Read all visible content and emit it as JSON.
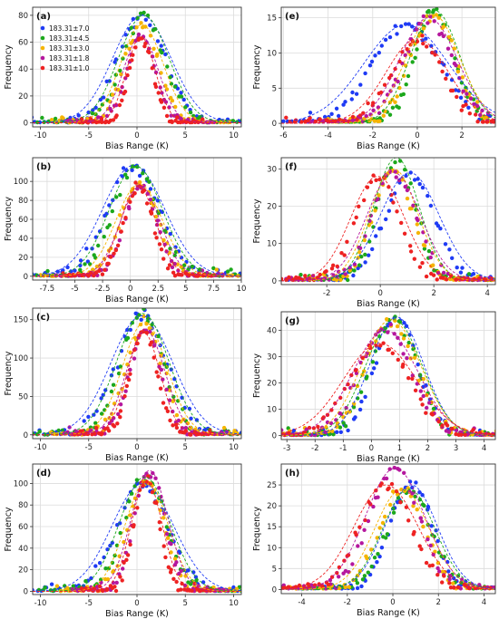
{
  "legend": [
    {
      "label": "183.31±7.0",
      "color": "#1f3bf5"
    },
    {
      "label": "183.31±4.5",
      "color": "#1ca81c"
    },
    {
      "label": "183.31±3.0",
      "color": "#f5b400"
    },
    {
      "label": "183.31±1.8",
      "color": "#b5179e"
    },
    {
      "label": "183.31±1.0",
      "color": "#ee2222"
    }
  ],
  "chart_data": [
    {
      "panel": "(a)",
      "type": "scatter",
      "xlabel": "Bias Range (K)",
      "ylabel": "Frequency",
      "xlim": [
        -10.8,
        10.8
      ],
      "ylim": [
        -3,
        86
      ],
      "xticks": [
        -10,
        -5,
        0,
        5,
        10
      ],
      "yticks": [
        0,
        20,
        40,
        60,
        80
      ],
      "legend_position": "top-left",
      "series": [
        {
          "name": "183.31±7.0",
          "mu": 0.5,
          "sigma": 3.0,
          "amp": 80
        },
        {
          "name": "183.31±4.5",
          "mu": 0.7,
          "sigma": 2.6,
          "amp": 80
        },
        {
          "name": "183.31±3.0",
          "mu": 0.5,
          "sigma": 2.2,
          "amp": 73
        },
        {
          "name": "183.31±1.8",
          "mu": 0.4,
          "sigma": 1.8,
          "amp": 65
        },
        {
          "name": "183.31±1.0",
          "mu": 0.4,
          "sigma": 1.5,
          "amp": 64
        }
      ]
    },
    {
      "panel": "(b)",
      "type": "scatter",
      "xlabel": "Bias Range (K)",
      "ylabel": "Frequency",
      "xlim": [
        -8.8,
        10.0
      ],
      "ylim": [
        -4,
        125
      ],
      "xticks": [
        -7.5,
        -5.0,
        -2.5,
        0.0,
        2.5,
        5.0,
        7.5,
        10.0
      ],
      "yticks": [
        0,
        20,
        40,
        60,
        80,
        100
      ],
      "series": [
        {
          "name": "183.31±7.0",
          "mu": 0.3,
          "sigma": 2.8,
          "amp": 117
        },
        {
          "name": "183.31±4.5",
          "mu": 0.5,
          "sigma": 2.4,
          "amp": 116
        },
        {
          "name": "183.31±3.0",
          "mu": 0.8,
          "sigma": 2.1,
          "amp": 97
        },
        {
          "name": "183.31±1.8",
          "mu": 0.9,
          "sigma": 1.8,
          "amp": 95
        },
        {
          "name": "183.31±1.0",
          "mu": 0.7,
          "sigma": 1.6,
          "amp": 95
        }
      ]
    },
    {
      "panel": "(c)",
      "type": "scatter",
      "xlabel": "Bias Range (K)",
      "ylabel": "Frequency",
      "xlim": [
        -10.8,
        10.8
      ],
      "ylim": [
        -5,
        165
      ],
      "xticks": [
        -10,
        -5,
        0,
        5,
        10
      ],
      "yticks": [
        0,
        50,
        100,
        150
      ],
      "series": [
        {
          "name": "183.31±7.0",
          "mu": 0.5,
          "sigma": 3.2,
          "amp": 155
        },
        {
          "name": "183.31±4.5",
          "mu": 0.6,
          "sigma": 2.7,
          "amp": 158
        },
        {
          "name": "183.31±3.0",
          "mu": 0.8,
          "sigma": 2.3,
          "amp": 147
        },
        {
          "name": "183.31±1.8",
          "mu": 0.9,
          "sigma": 2.0,
          "amp": 136
        },
        {
          "name": "183.31±1.0",
          "mu": 0.7,
          "sigma": 1.7,
          "amp": 133
        }
      ]
    },
    {
      "panel": "(d)",
      "type": "scatter",
      "xlabel": "Bias Range (K)",
      "ylabel": "Frequency",
      "xlim": [
        -10.8,
        10.8
      ],
      "ylim": [
        -3,
        118
      ],
      "xticks": [
        -10,
        -5,
        0,
        5,
        10
      ],
      "yticks": [
        0,
        20,
        40,
        60,
        80,
        100
      ],
      "series": [
        {
          "name": "183.31±7.0",
          "mu": 0.6,
          "sigma": 3.2,
          "amp": 100
        },
        {
          "name": "183.31±4.5",
          "mu": 0.8,
          "sigma": 2.6,
          "amp": 106
        },
        {
          "name": "183.31±3.0",
          "mu": 1.0,
          "sigma": 2.2,
          "amp": 103
        },
        {
          "name": "183.31±1.8",
          "mu": 1.3,
          "sigma": 1.9,
          "amp": 112
        },
        {
          "name": "183.31±1.0",
          "mu": 1.0,
          "sigma": 1.6,
          "amp": 103
        }
      ]
    },
    {
      "panel": "(e)",
      "type": "scatter",
      "xlabel": "Bias Range (K)",
      "ylabel": "Frequency",
      "xlim": [
        -6.1,
        3.5
      ],
      "ylim": [
        -0.5,
        16.5
      ],
      "xticks": [
        -6,
        -4,
        -2,
        0,
        2
      ],
      "yticks": [
        0,
        5,
        10,
        15
      ],
      "series": [
        {
          "name": "183.31±7.0",
          "mu": -0.5,
          "sigma": 1.9,
          "amp": 14
        },
        {
          "name": "183.31±4.5",
          "mu": 0.8,
          "sigma": 1.1,
          "amp": 16
        },
        {
          "name": "183.31±3.0",
          "mu": 0.7,
          "sigma": 1.2,
          "amp": 15.5
        },
        {
          "name": "183.31±1.8",
          "mu": 0.5,
          "sigma": 1.3,
          "amp": 15
        },
        {
          "name": "183.31±1.0",
          "mu": 0.0,
          "sigma": 1.4,
          "amp": 12
        }
      ]
    },
    {
      "panel": "(f)",
      "type": "scatter",
      "xlabel": "Bias Range (K)",
      "ylabel": "Frequency",
      "xlim": [
        -3.7,
        4.3
      ],
      "ylim": [
        -1,
        33
      ],
      "xticks": [
        -2,
        0,
        2,
        4
      ],
      "yticks": [
        0,
        10,
        20,
        30
      ],
      "series": [
        {
          "name": "183.31±7.0",
          "mu": 1.1,
          "sigma": 1.1,
          "amp": 29
        },
        {
          "name": "183.31±4.5",
          "mu": 0.6,
          "sigma": 0.85,
          "amp": 33
        },
        {
          "name": "183.31±3.0",
          "mu": 0.5,
          "sigma": 0.9,
          "amp": 30
        },
        {
          "name": "183.31±1.8",
          "mu": 0.5,
          "sigma": 1.0,
          "amp": 29
        },
        {
          "name": "183.31±1.0",
          "mu": -0.1,
          "sigma": 1.0,
          "amp": 28
        }
      ]
    },
    {
      "panel": "(g)",
      "type": "scatter",
      "xlabel": "Bias Range (K)",
      "ylabel": "Frequency",
      "xlim": [
        -3.2,
        4.4
      ],
      "ylim": [
        -1.5,
        47
      ],
      "xticks": [
        -3,
        -2,
        -1,
        0,
        1,
        2,
        3,
        4
      ],
      "yticks": [
        0,
        10,
        20,
        30,
        40
      ],
      "series": [
        {
          "name": "183.31±7.0",
          "mu": 0.9,
          "sigma": 0.95,
          "amp": 45
        },
        {
          "name": "183.31±4.5",
          "mu": 0.8,
          "sigma": 1.0,
          "amp": 44
        },
        {
          "name": "183.31±3.0",
          "mu": 0.7,
          "sigma": 1.05,
          "amp": 44
        },
        {
          "name": "183.31±1.8",
          "mu": 0.5,
          "sigma": 1.15,
          "amp": 40
        },
        {
          "name": "183.31±1.0",
          "mu": 0.3,
          "sigma": 1.3,
          "amp": 35
        }
      ]
    },
    {
      "panel": "(h)",
      "type": "scatter",
      "xlabel": "Bias Range (K)",
      "ylabel": "Frequency",
      "xlim": [
        -4.9,
        4.5
      ],
      "ylim": [
        -1,
        30
      ],
      "xticks": [
        -4,
        -2,
        0,
        2,
        4
      ],
      "yticks": [
        0,
        5,
        10,
        15,
        20,
        25
      ],
      "series": [
        {
          "name": "183.31±7.0",
          "mu": 0.8,
          "sigma": 1.15,
          "amp": 25
        },
        {
          "name": "183.31±4.5",
          "mu": 0.7,
          "sigma": 1.15,
          "amp": 24
        },
        {
          "name": "183.31±3.0",
          "mu": 0.4,
          "sigma": 1.2,
          "amp": 24
        },
        {
          "name": "183.31±1.8",
          "mu": 0.1,
          "sigma": 1.3,
          "amp": 29
        },
        {
          "name": "183.31±1.0",
          "mu": -0.3,
          "sigma": 1.4,
          "amp": 25
        }
      ]
    }
  ]
}
